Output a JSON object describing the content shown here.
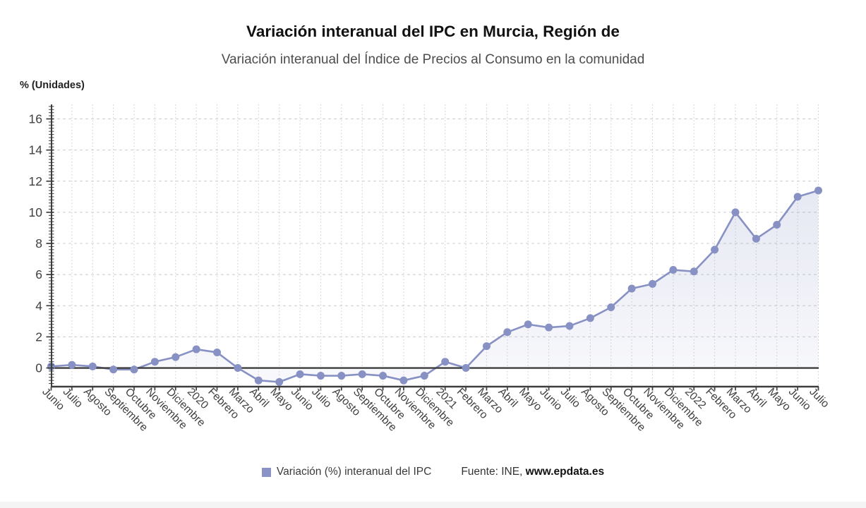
{
  "header": {
    "title": "Variación interanual del IPC en Murcia, Región de",
    "subtitle": "Variación interanual del Índice de Precios al Consumo en la comunidad"
  },
  "chart_data": {
    "type": "line",
    "title": "Variación interanual del IPC en Murcia, Región de",
    "subtitle": "Variación interanual del Índice de Precios al Consumo en la comunidad",
    "ylabel": "% (Unidades)",
    "xlabel": "",
    "categories": [
      "Junio",
      "Julio",
      "Agosto",
      "Septiembre",
      "Octubre",
      "Noviembre",
      "Diciembre",
      "2020",
      "Febrero",
      "Marzo",
      "Abril",
      "Mayo",
      "Junio",
      "Julio",
      "Agosto",
      "Septiembre",
      "Octubre",
      "Noviembre",
      "Diciembre",
      "2021",
      "Febrero",
      "Marzo",
      "Abril",
      "Mayo",
      "Junio",
      "Julio",
      "Agosto",
      "Septiembre",
      "Octubre",
      "Noviembre",
      "Diciembre",
      "2022",
      "Febrero",
      "Marzo",
      "Abril",
      "Mayo",
      "Junio",
      "Julio"
    ],
    "series": [
      {
        "name": "Variación (%) interanual del IPC",
        "values": [
          0.1,
          0.2,
          0.1,
          -0.1,
          -0.1,
          0.4,
          0.7,
          1.2,
          1.0,
          0.0,
          -0.8,
          -0.9,
          -0.4,
          -0.5,
          -0.5,
          -0.4,
          -0.5,
          -0.8,
          -0.5,
          0.4,
          0.0,
          1.4,
          2.3,
          2.8,
          2.6,
          2.7,
          3.2,
          3.9,
          5.1,
          5.4,
          6.3,
          6.2,
          7.6,
          10.0,
          8.3,
          9.2,
          11.0,
          11.4
        ]
      }
    ],
    "yticks": [
      0,
      2,
      4,
      6,
      8,
      10,
      12,
      14,
      16
    ],
    "ylim": [
      -1.2,
      16.93
    ],
    "grid": true,
    "legend_position": "bottom",
    "area_fill": true,
    "baseline": 0
  },
  "colors": {
    "accent": "#8791c4",
    "legend_swatch": "#8a93c6",
    "axis": "#3d3d3d",
    "grid": "#cccccc",
    "tick_text": "#3f3f3f",
    "area_top": "rgba(135,145,196,0.28)",
    "area_mid": "rgba(135,145,196,0.14)",
    "area_bottom": "rgba(135,145,196,0.05)"
  },
  "legend": {
    "series_label": "Variación (%) interanual del IPC"
  },
  "source": {
    "prefix": "Fuente: INE, ",
    "bold": "www.epdata.es"
  }
}
